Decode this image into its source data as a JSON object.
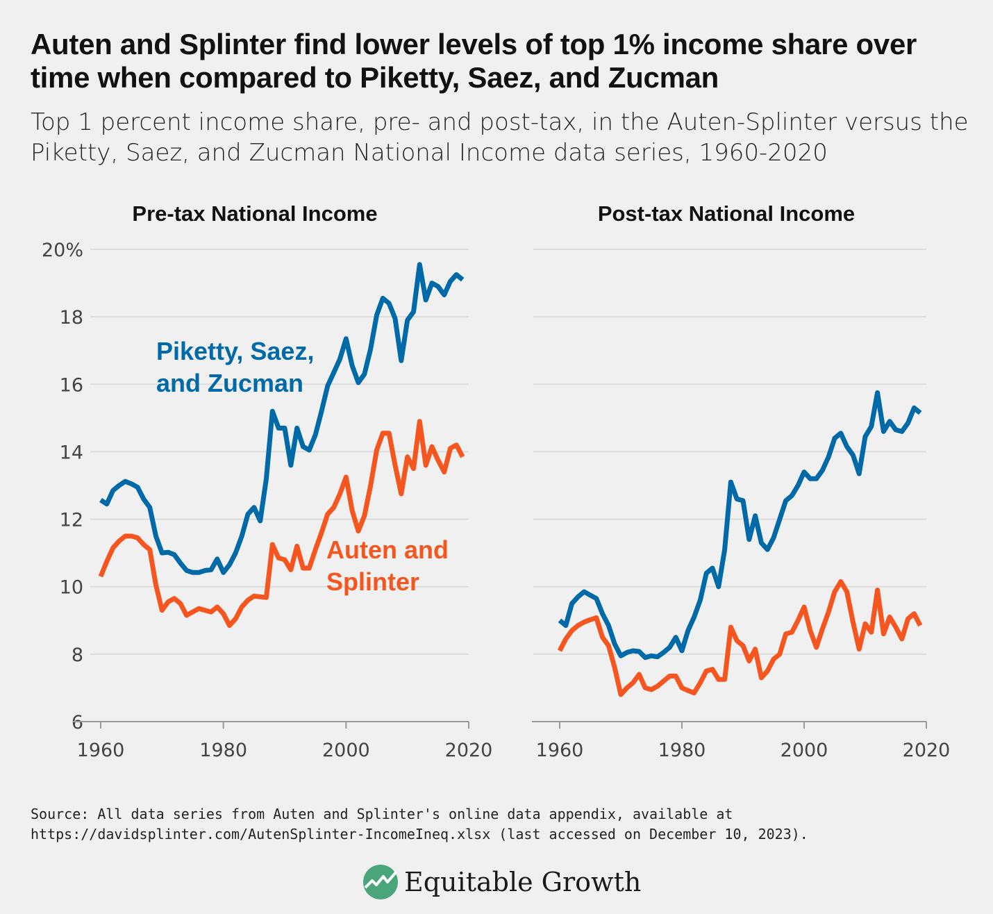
{
  "title": "Auten and Splinter find lower levels of top 1% income share over time when compared to Piketty, Saez, and Zucman",
  "subtitle": "Top 1 percent income share, pre- and post-tax, in the Auten-Splinter versus the Piketty, Saez, and Zucman National Income data series, 1960-2020",
  "source_line1": "Source: All data series from Auten and Splinter's online data appendix, available at",
  "source_line2": "https://davidsplinter.com/AutenSplinter-IncomeIneq.xlsx (last accessed on December 10, 2023).",
  "logo_text": "Equitable Growth",
  "colors": {
    "psz": "#0069a8",
    "as": "#f5561f",
    "background": "#f0f0f0",
    "grid": "#dcdcdc"
  },
  "chart_data": [
    {
      "type": "line",
      "title": "Pre-tax National Income",
      "x": [
        1960,
        1961,
        1962,
        1963,
        1964,
        1965,
        1966,
        1967,
        1968,
        1969,
        1970,
        1971,
        1972,
        1973,
        1974,
        1975,
        1976,
        1977,
        1978,
        1979,
        1980,
        1981,
        1982,
        1983,
        1984,
        1985,
        1986,
        1987,
        1988,
        1989,
        1990,
        1991,
        1992,
        1993,
        1994,
        1995,
        1996,
        1997,
        1998,
        1999,
        2000,
        2001,
        2002,
        2003,
        2004,
        2005,
        2006,
        2007,
        2008,
        2009,
        2010,
        2011,
        2012,
        2013,
        2014,
        2015,
        2016,
        2017,
        2018,
        2019
      ],
      "xlim": [
        1960,
        2020
      ],
      "xticks": [
        "1960",
        "1980",
        "2000",
        "2020"
      ],
      "ylim": [
        6,
        20
      ],
      "yticks": [
        "20%",
        "18",
        "16",
        "14",
        "12",
        "10",
        "8",
        "6"
      ],
      "ytick_values": [
        20,
        18,
        16,
        14,
        12,
        10,
        8,
        6
      ],
      "grid": true,
      "series": [
        {
          "name": "Piketty, Saez, and Zucman",
          "color": "#0069a8",
          "values": [
            12.57,
            12.45,
            12.85,
            13.0,
            13.12,
            13.05,
            12.95,
            12.6,
            12.35,
            11.5,
            11.0,
            11.02,
            10.95,
            10.7,
            10.48,
            10.42,
            10.42,
            10.48,
            10.5,
            10.82,
            10.42,
            10.65,
            11.0,
            11.5,
            12.15,
            12.35,
            11.95,
            13.2,
            15.2,
            14.7,
            14.7,
            13.6,
            14.7,
            14.15,
            14.05,
            14.5,
            15.2,
            15.95,
            16.35,
            16.75,
            17.35,
            16.55,
            16.05,
            16.3,
            17.05,
            18.05,
            18.55,
            18.4,
            17.95,
            16.7,
            17.9,
            18.15,
            19.55,
            18.5,
            19.0,
            18.9,
            18.65,
            19.05,
            19.25,
            19.1
          ]
        },
        {
          "name": "Auten and Splinter",
          "color": "#f5561f",
          "values": [
            10.3,
            10.75,
            11.15,
            11.35,
            11.5,
            11.5,
            11.45,
            11.25,
            11.1,
            10.05,
            9.3,
            9.55,
            9.65,
            9.5,
            9.15,
            9.25,
            9.35,
            9.3,
            9.25,
            9.4,
            9.2,
            8.85,
            9.05,
            9.4,
            9.6,
            9.72,
            9.7,
            9.68,
            11.25,
            10.85,
            10.8,
            10.5,
            11.2,
            10.55,
            10.55,
            11.1,
            11.6,
            12.15,
            12.35,
            12.75,
            13.25,
            12.25,
            11.65,
            12.1,
            13.0,
            14.05,
            14.55,
            14.55,
            13.6,
            12.75,
            13.85,
            13.5,
            14.9,
            13.6,
            14.15,
            13.75,
            13.4,
            14.1,
            14.2,
            13.85
          ]
        }
      ],
      "annotations": [
        {
          "lines": [
            "Piketty, Saez,",
            "and Zucman"
          ],
          "series": "Piketty, Saez, and Zucman"
        },
        {
          "lines": [
            "Auten and",
            "Splinter"
          ],
          "series": "Auten and Splinter"
        }
      ]
    },
    {
      "type": "line",
      "title": "Post-tax National Income",
      "x": [
        1960,
        1961,
        1962,
        1963,
        1964,
        1965,
        1966,
        1967,
        1968,
        1969,
        1970,
        1971,
        1972,
        1973,
        1974,
        1975,
        1976,
        1977,
        1978,
        1979,
        1980,
        1981,
        1982,
        1983,
        1984,
        1985,
        1986,
        1987,
        1988,
        1989,
        1990,
        1991,
        1992,
        1993,
        1994,
        1995,
        1996,
        1997,
        1998,
        1999,
        2000,
        2001,
        2002,
        2003,
        2004,
        2005,
        2006,
        2007,
        2008,
        2009,
        2010,
        2011,
        2012,
        2013,
        2014,
        2015,
        2016,
        2017,
        2018,
        2019
      ],
      "xlim": [
        1960,
        2020
      ],
      "xticks": [
        "1960",
        "1980",
        "2000",
        "2020"
      ],
      "ylim": [
        6,
        20
      ],
      "ytick_values": [
        20,
        18,
        16,
        14,
        12,
        10,
        8,
        6
      ],
      "grid": true,
      "series": [
        {
          "name": "Piketty, Saez, and Zucman",
          "color": "#0069a8",
          "values": [
            9.0,
            8.85,
            9.5,
            9.7,
            9.85,
            9.75,
            9.65,
            9.2,
            8.85,
            8.3,
            7.95,
            8.05,
            8.1,
            8.08,
            7.9,
            7.95,
            7.92,
            8.05,
            8.2,
            8.5,
            8.1,
            8.7,
            9.1,
            9.6,
            10.4,
            10.55,
            10.0,
            11.1,
            13.1,
            12.6,
            12.55,
            11.4,
            12.1,
            11.3,
            11.1,
            11.45,
            12.0,
            12.55,
            12.7,
            13.0,
            13.4,
            13.2,
            13.2,
            13.45,
            13.85,
            14.4,
            14.55,
            14.15,
            13.9,
            13.35,
            14.45,
            14.75,
            15.75,
            14.6,
            14.9,
            14.65,
            14.6,
            14.85,
            15.3,
            15.15
          ]
        },
        {
          "name": "Auten and Splinter",
          "color": "#f5561f",
          "values": [
            8.1,
            8.45,
            8.7,
            8.85,
            8.95,
            9.02,
            9.08,
            8.5,
            8.25,
            7.6,
            6.8,
            7.0,
            7.15,
            7.4,
            7.0,
            6.95,
            7.05,
            7.2,
            7.35,
            7.35,
            7.0,
            6.92,
            6.85,
            7.15,
            7.5,
            7.55,
            7.25,
            7.25,
            8.8,
            8.4,
            8.25,
            7.8,
            8.15,
            7.3,
            7.5,
            7.85,
            8.0,
            8.6,
            8.65,
            9.0,
            9.4,
            8.7,
            8.2,
            8.75,
            9.25,
            9.85,
            10.15,
            9.85,
            8.95,
            8.15,
            8.9,
            8.65,
            9.9,
            8.6,
            9.1,
            8.8,
            8.45,
            9.05,
            9.2,
            8.85
          ]
        }
      ]
    }
  ]
}
